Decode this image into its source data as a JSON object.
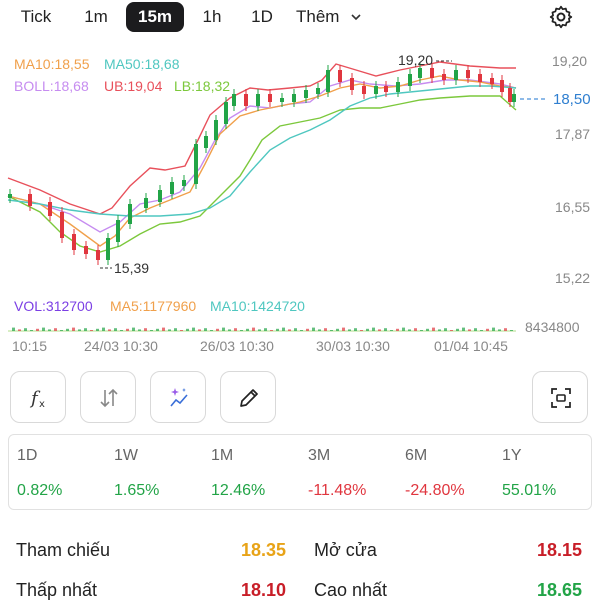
{
  "tabs": [
    {
      "label": "Tick",
      "active": false
    },
    {
      "label": "1m",
      "active": false
    },
    {
      "label": "15m",
      "active": true
    },
    {
      "label": "1h",
      "active": false
    },
    {
      "label": "1D",
      "active": false
    },
    {
      "label": "Thêm",
      "active": false
    }
  ],
  "icons": {
    "more_chevron": "chevron-down-icon",
    "settings": "gear-icon"
  },
  "chart": {
    "indicators": {
      "ma10": "MA10:18,55",
      "ma50": "MA50:18,68",
      "boll": "BOLL:18,68",
      "ub": "UB:19,04",
      "lb": "LB:18,32"
    },
    "price_axis": [
      "19,20",
      "18,50",
      "17,87",
      "16,55",
      "15,22"
    ],
    "high_label": "19,20",
    "low_label": "15,39",
    "current_price": "18,50",
    "volume": {
      "vol": "VOL:312700",
      "ma5": "MA5:1177960",
      "ma10": "MA10:1424720",
      "axis_max": "8434800"
    },
    "time_axis": [
      "10:15",
      "24/03 10:30",
      "26/03 10:30",
      "30/03 10:30",
      "01/04 10:45"
    ],
    "colors": {
      "ma10": "#f0a04b",
      "ma50": "#4fc7c0",
      "boll": "#c68cf0",
      "ub": "#e8505b",
      "lb": "#7cc83c",
      "up": "#22a447",
      "down": "#e0363f",
      "vol_text": "#7b3fe4"
    }
  },
  "tools": [
    {
      "name": "formula-icon"
    },
    {
      "name": "compare-arrows-icon"
    },
    {
      "name": "ai-sparkle-icon"
    },
    {
      "name": "pencil-icon"
    },
    {
      "name": "screenshot-frame-icon"
    }
  ],
  "returns": [
    {
      "period": "1D",
      "value": "0.82%",
      "color": "#22a447"
    },
    {
      "period": "1W",
      "value": "1.65%",
      "color": "#22a447"
    },
    {
      "period": "1M",
      "value": "12.46%",
      "color": "#22a447"
    },
    {
      "period": "3M",
      "value": "-11.48%",
      "color": "#e0363f"
    },
    {
      "period": "6M",
      "value": "-24.80%",
      "color": "#e0363f"
    },
    {
      "period": "1Y",
      "value": "55.01%",
      "color": "#22a447"
    }
  ],
  "stats": {
    "reference": {
      "label": "Tham chiếu",
      "value": "18.35",
      "color": "#e8a317"
    },
    "open": {
      "label": "Mở cửa",
      "value": "18.15",
      "color": "#c81e28"
    },
    "low": {
      "label": "Thấp nhất",
      "value": "18.10",
      "color": "#c81e28"
    },
    "high": {
      "label": "Cao nhất",
      "value": "18.65",
      "color": "#22a447"
    }
  }
}
